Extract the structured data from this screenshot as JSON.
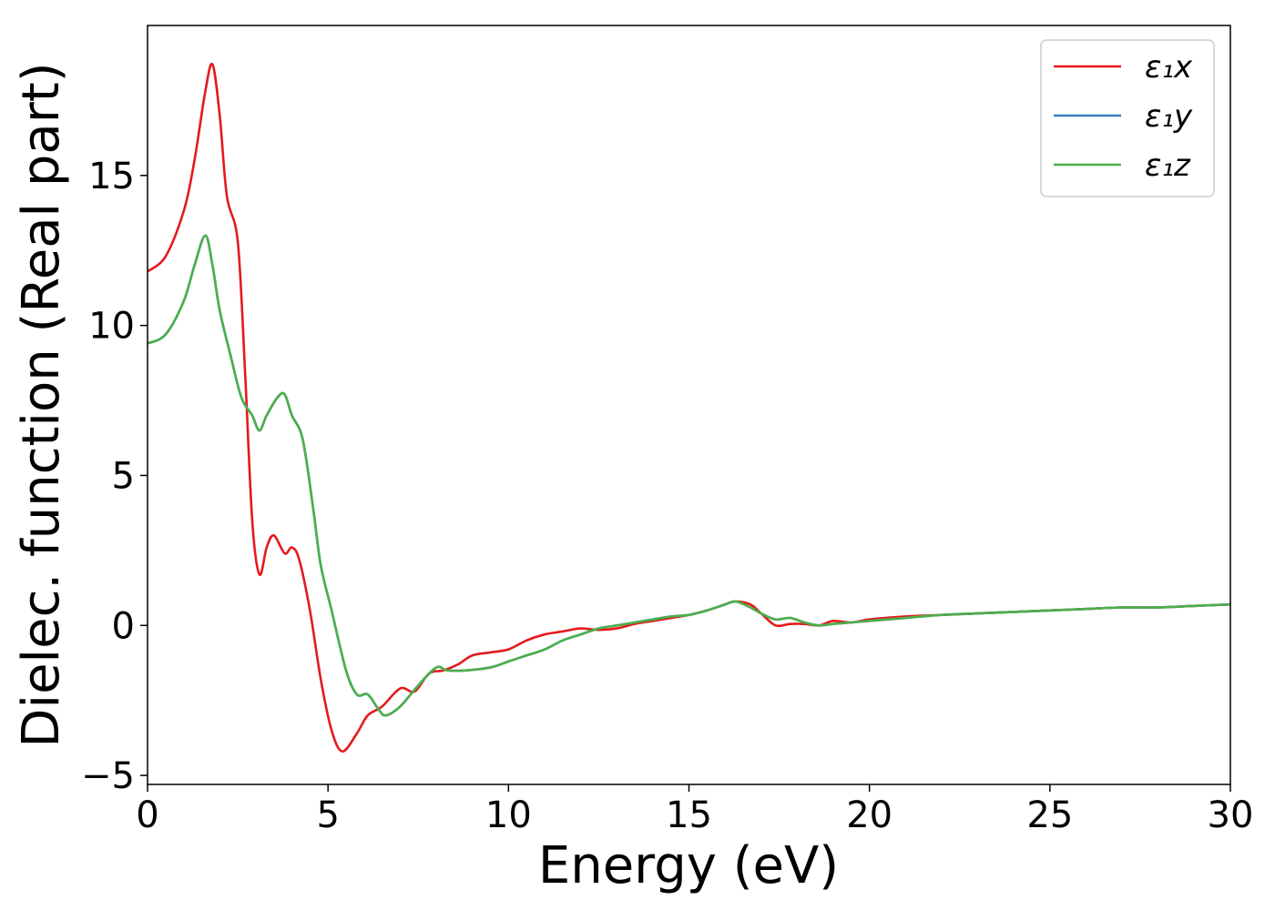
{
  "chart_data": {
    "type": "line",
    "title": "",
    "xlabel": "Energy (eV)",
    "ylabel": "Dielec. function (Real part)",
    "xlim": [
      0,
      30
    ],
    "ylim": [
      -5.3,
      20
    ],
    "xticks": [
      0,
      5,
      10,
      15,
      20,
      25,
      30
    ],
    "xtick_labels": [
      "0",
      "5",
      "10",
      "15",
      "20",
      "25",
      "30"
    ],
    "yticks": [
      -5,
      0,
      5,
      10,
      15
    ],
    "ytick_labels": [
      "−5",
      "0",
      "5",
      "10",
      "15"
    ],
    "grid": false,
    "legend_position": "top-right",
    "series": [
      {
        "name": "ε₁x",
        "color": "#e41a1c",
        "x": [
          0,
          0.5,
          1,
          1.3,
          1.6,
          1.8,
          2.0,
          2.2,
          2.5,
          2.7,
          2.9,
          3.1,
          3.3,
          3.5,
          3.8,
          4.0,
          4.2,
          4.5,
          4.8,
          5.1,
          5.4,
          5.8,
          6.1,
          6.5,
          7.0,
          7.4,
          7.8,
          8.2,
          8.6,
          9.0,
          9.5,
          10,
          10.5,
          11,
          11.5,
          12,
          12.5,
          13,
          13.5,
          14,
          14.5,
          15,
          15.5,
          16,
          16.3,
          16.7,
          17,
          17.4,
          17.8,
          18.2,
          18.6,
          19,
          19.5,
          20,
          21,
          22,
          23,
          24,
          25,
          26,
          27,
          28,
          29,
          30
        ],
        "values": [
          11.8,
          12.3,
          13.8,
          15.5,
          17.8,
          18.7,
          17.0,
          14.3,
          12.8,
          8.5,
          3.5,
          1.7,
          2.6,
          3.0,
          2.4,
          2.6,
          2.2,
          0.5,
          -1.8,
          -3.5,
          -4.2,
          -3.6,
          -3.0,
          -2.7,
          -2.1,
          -2.2,
          -1.6,
          -1.5,
          -1.3,
          -1.0,
          -0.9,
          -0.8,
          -0.5,
          -0.3,
          -0.2,
          -0.1,
          -0.15,
          -0.1,
          0.05,
          0.15,
          0.25,
          0.35,
          0.5,
          0.7,
          0.8,
          0.7,
          0.4,
          0.0,
          0.05,
          0.05,
          0.0,
          0.15,
          0.1,
          0.2,
          0.3,
          0.35,
          0.4,
          0.45,
          0.5,
          0.55,
          0.6,
          0.6,
          0.65,
          0.7
        ]
      },
      {
        "name": "ε₁y",
        "color": "#377eb8",
        "x": [
          0,
          0.5,
          1,
          1.3,
          1.6,
          1.8,
          2.0,
          2.3,
          2.6,
          2.9,
          3.1,
          3.3,
          3.6,
          3.8,
          4.0,
          4.3,
          4.6,
          4.8,
          5.1,
          5.5,
          5.8,
          6.1,
          6.4,
          6.6,
          7.0,
          7.5,
          8.0,
          8.3,
          8.8,
          9.5,
          10,
          10.5,
          11,
          11.5,
          12,
          12.5,
          13,
          13.5,
          14,
          14.5,
          15,
          15.5,
          16,
          16.3,
          16.7,
          17,
          17.4,
          17.8,
          18.2,
          18.6,
          19,
          19.5,
          20,
          21,
          22,
          23,
          24,
          25,
          26,
          27,
          28,
          29,
          30
        ],
        "values": [
          9.4,
          9.7,
          10.8,
          12.0,
          13.0,
          12.0,
          10.5,
          9.0,
          7.6,
          7.0,
          6.5,
          7.0,
          7.6,
          7.7,
          7.0,
          6.2,
          3.8,
          2.0,
          0.5,
          -1.5,
          -2.3,
          -2.3,
          -2.8,
          -3.0,
          -2.7,
          -2.0,
          -1.4,
          -1.5,
          -1.5,
          -1.4,
          -1.2,
          -1.0,
          -0.8,
          -0.5,
          -0.3,
          -0.1,
          0.0,
          0.1,
          0.2,
          0.3,
          0.35,
          0.5,
          0.7,
          0.8,
          0.6,
          0.4,
          0.2,
          0.25,
          0.1,
          0.0,
          0.05,
          0.1,
          0.15,
          0.25,
          0.35,
          0.4,
          0.45,
          0.5,
          0.55,
          0.6,
          0.6,
          0.65,
          0.7
        ]
      },
      {
        "name": "ε₁z",
        "color": "#4daf4a",
        "x": [
          0,
          0.5,
          1,
          1.3,
          1.6,
          1.8,
          2.0,
          2.3,
          2.6,
          2.9,
          3.1,
          3.3,
          3.6,
          3.8,
          4.0,
          4.3,
          4.6,
          4.8,
          5.1,
          5.5,
          5.8,
          6.1,
          6.4,
          6.6,
          7.0,
          7.5,
          8.0,
          8.3,
          8.8,
          9.5,
          10,
          10.5,
          11,
          11.5,
          12,
          12.5,
          13,
          13.5,
          14,
          14.5,
          15,
          15.5,
          16,
          16.3,
          16.7,
          17,
          17.4,
          17.8,
          18.2,
          18.6,
          19,
          19.5,
          20,
          21,
          22,
          23,
          24,
          25,
          26,
          27,
          28,
          29,
          30
        ],
        "values": [
          9.4,
          9.7,
          10.8,
          12.0,
          13.0,
          12.0,
          10.5,
          9.0,
          7.6,
          7.0,
          6.5,
          7.0,
          7.6,
          7.7,
          7.0,
          6.2,
          3.8,
          2.0,
          0.5,
          -1.5,
          -2.3,
          -2.3,
          -2.8,
          -3.0,
          -2.7,
          -2.0,
          -1.4,
          -1.5,
          -1.5,
          -1.4,
          -1.2,
          -1.0,
          -0.8,
          -0.5,
          -0.3,
          -0.1,
          0.0,
          0.1,
          0.2,
          0.3,
          0.35,
          0.5,
          0.7,
          0.8,
          0.6,
          0.4,
          0.2,
          0.25,
          0.1,
          0.0,
          0.05,
          0.1,
          0.15,
          0.25,
          0.35,
          0.4,
          0.45,
          0.5,
          0.55,
          0.6,
          0.6,
          0.65,
          0.7
        ]
      }
    ]
  }
}
